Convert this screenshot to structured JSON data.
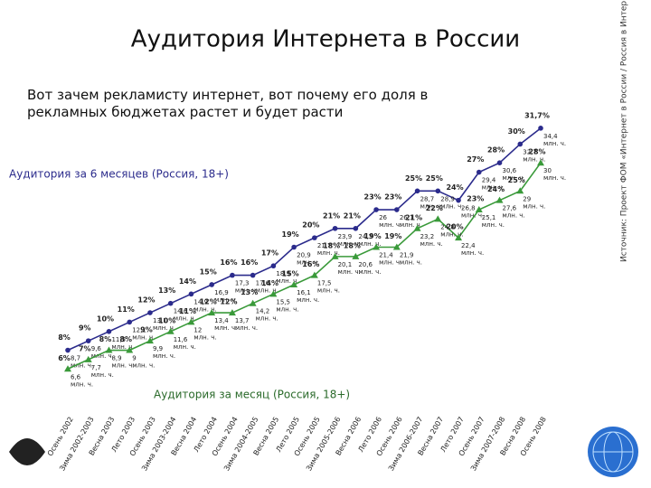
{
  "chart_data": {
    "type": "line",
    "title": "Аудитория Интернета в России",
    "subtitle": "Вот зачем рекламисту интернет, вот почему его доля в рекламных бюджетах растет и будет расти",
    "source": "Источник: Проект ФОМ «Интернет в России / Россия в Интернете»",
    "categories": [
      "Осень 2002",
      "Зима 2002-2003",
      "Весна 2003",
      "Лето 2003",
      "Осень 2003",
      "Зима 2003-2004",
      "Весна 2004",
      "Лето 2004",
      "Осень 2004",
      "Зима 2004-2005",
      "Весна 2005",
      "Лето 2005",
      "Осень 2005",
      "Зима 2005-2006",
      "Весна 2006",
      "Лето 2006",
      "Осень 2006",
      "Зима 2006-2007",
      "Весна 2007",
      "Лето 2007",
      "Осень 2007",
      "Зима 2007-2008",
      "Весна 2008",
      "Осень 2008"
    ],
    "ylim": [
      4,
      34
    ],
    "unit_label": "млн. ч.",
    "series": [
      {
        "name": "Аудитория за 6 месяцев (Россия, 18+)",
        "color": "#2b2b8c",
        "marker": "circle",
        "values": [
          8,
          9,
          10,
          11,
          12,
          13,
          14,
          15,
          16,
          16,
          17,
          19,
          20,
          21,
          21,
          23,
          23,
          25,
          25,
          24,
          27,
          28,
          30,
          31.7
        ],
        "value_labels": [
          "8%",
          "9%",
          "10%",
          "11%",
          "12%",
          "13%",
          "14%",
          "15%",
          "16%",
          "16%",
          "17%",
          "19%",
          "20%",
          "21%",
          "21%",
          "23%",
          "23%",
          "25%",
          "25%",
          "24%",
          "27%",
          "28%",
          "30%",
          "31,7%"
        ],
        "audience": [
          "8,7",
          "9,6",
          "11,5",
          "12,1",
          "13,1",
          "14,6",
          "14,9",
          "16,9",
          "17,3",
          "17,6",
          "18,9",
          "20,9",
          "21,7",
          "23,9",
          "24,3",
          "26",
          "26,1",
          "28,7",
          "28,9",
          "26,8",
          "29,4",
          "30,6",
          "32,7",
          "34,4"
        ]
      },
      {
        "name": "Аудитория за месяц (Россия, 18+)",
        "color": "#3a9a3a",
        "marker": "triangle",
        "values": [
          6,
          7,
          8,
          8,
          9,
          10,
          11,
          12,
          12,
          13,
          14,
          15,
          16,
          18,
          18,
          19,
          19,
          21,
          22,
          20,
          23,
          24,
          25,
          28
        ],
        "value_labels": [
          "6%",
          "7%",
          "8%",
          "8%",
          "9%",
          "10%",
          "11%",
          "12%",
          "12%",
          "13%",
          "14%",
          "15%",
          "16%",
          "18%",
          "18%",
          "19%",
          "19%",
          "21%",
          "22%",
          "20%",
          "23%",
          "24%",
          "25%",
          "28%"
        ],
        "audience": [
          "6,6",
          "7,7",
          "8,9",
          "9",
          "9,9",
          "11,6",
          "12",
          "13,4",
          "13,7",
          "14,2",
          "15,5",
          "16,1",
          "17,5",
          "20,1",
          "20,6",
          "21,4",
          "21,9",
          "23,2",
          "24,8",
          "22,4",
          "25,1",
          "27,6",
          "29",
          "30"
        ]
      }
    ]
  }
}
